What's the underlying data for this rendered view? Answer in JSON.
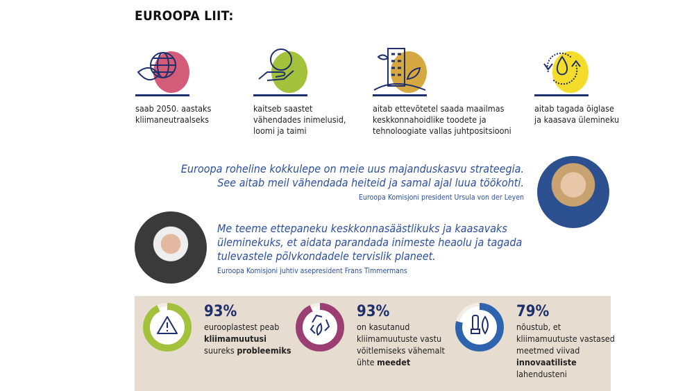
{
  "title": "EUROOPA LIIT:",
  "features": [
    {
      "icon": "globe-leaf-icon",
      "color": "#d35c79",
      "line1": "saab 2050. aastaks",
      "line2": "kliimaneutraalseks",
      "line3": ""
    },
    {
      "icon": "hand-earth-icon",
      "color": "#a3c13b",
      "line1": "kaitseb saastet",
      "line2": "vähendades inimelusid,",
      "line3": "loomi ja taimi"
    },
    {
      "icon": "building-plant-icon",
      "color": "#d6a842",
      "line1": "aitab ettevõtetel saada maailmas",
      "line2": "keskkonnahoidlike toodete ja",
      "line3": "tehnoloogiate vallas juhtpositsiooni"
    },
    {
      "icon": "cycle-drop-icon",
      "color": "#f4dc2a",
      "line1": "aitab tagada õiglase",
      "line2": "ja kaasava ülemineku",
      "line3": ""
    }
  ],
  "quotes": [
    {
      "line1": "Euroopa roheline kokkulepe on meie uus majanduskasvu strateegia.",
      "line2": "See aitab meil vähendada heiteid ja samal ajal luua töökohti.",
      "line3": "",
      "attribution": "Euroopa Komisjoni president Ursula von der Leyen"
    },
    {
      "line1": "Me teeme ettepaneku keskkonnasäästlikuks ja kaasavaks",
      "line2": "üleminekuks, et aidata parandada inimeste heaolu ja tagada",
      "line3": "tulevastele põlvkondadele tervislik planeet.",
      "attribution": "Euroopa Komisjoni juhtiv asepresident Frans Timmermans"
    }
  ],
  "stats": [
    {
      "percent": "93%",
      "value": 93,
      "color": "#a3c13b",
      "icon": "warning-icon",
      "parts": [
        [
          "eurooplastest peab",
          ""
        ],
        [
          "",
          "kliimamuutusi"
        ],
        [
          "suureks ",
          "probleemiks"
        ]
      ]
    },
    {
      "percent": "93%",
      "value": 93,
      "color": "#9b3f72",
      "icon": "recycle-leaf-icon",
      "parts": [
        [
          "on kasutanud",
          ""
        ],
        [
          "kliimamuutuste vastu",
          ""
        ],
        [
          "võitlemiseks vähemalt",
          ""
        ],
        [
          "ühte ",
          "meedet"
        ]
      ]
    },
    {
      "percent": "79%",
      "value": 79,
      "color": "#2e64ad",
      "icon": "bulb-leaf-icon",
      "parts": [
        [
          "nõustub, et",
          ""
        ],
        [
          "kliimamuutuste vastased",
          ""
        ],
        [
          "meetmed viivad",
          ""
        ],
        [
          "",
          "innovaatiliste"
        ],
        [
          "lahendusteni",
          ""
        ]
      ]
    }
  ]
}
